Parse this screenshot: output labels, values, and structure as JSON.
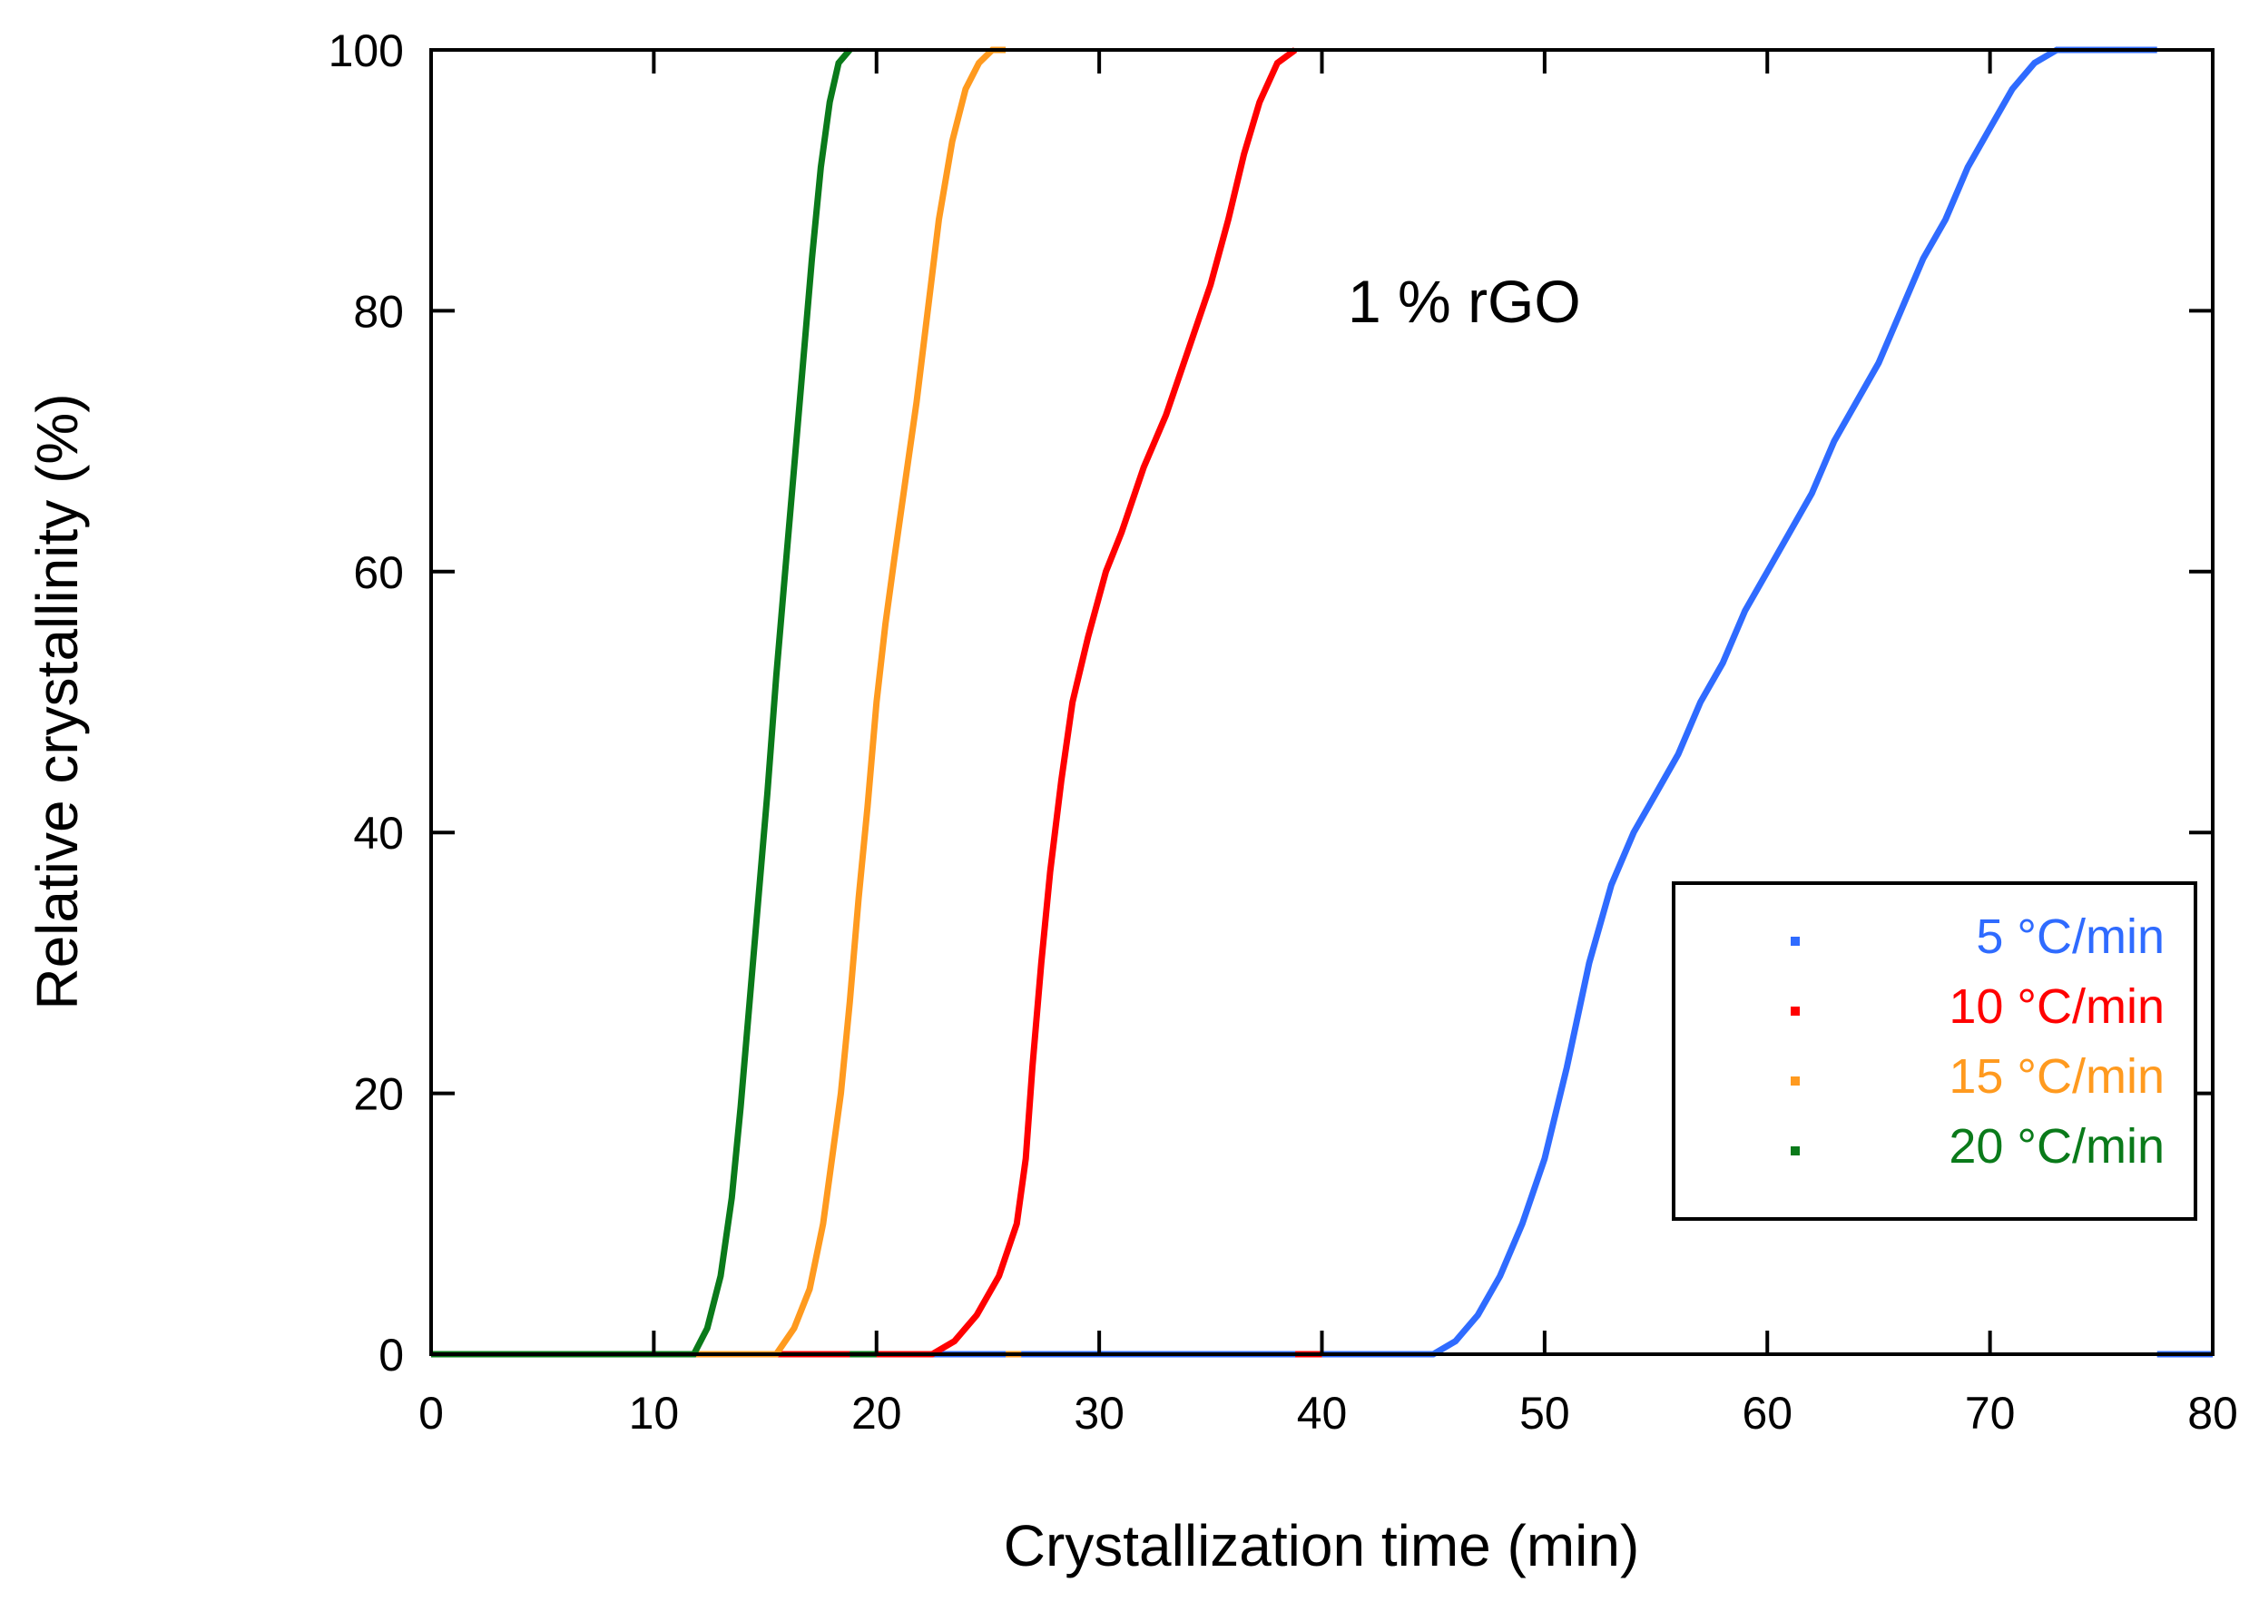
{
  "chart_data": {
    "type": "line",
    "title": "",
    "xlabel": "Crystallization time (min)",
    "ylabel": "Relative crystallinity (%)",
    "xlim": [
      0,
      80
    ],
    "ylim": [
      0,
      100
    ],
    "xticks": [
      0,
      10,
      20,
      30,
      40,
      50,
      60,
      70,
      80
    ],
    "yticks": [
      0,
      20,
      40,
      60,
      80,
      100
    ],
    "grid": false,
    "legend_position": "lower-right",
    "annotation": "1 % rGO",
    "series": [
      {
        "name": "5 °C/min",
        "color": "#2f6bff",
        "points": [
          [
            0,
            0
          ],
          [
            45,
            0
          ],
          [
            46,
            1
          ],
          [
            47,
            3
          ],
          [
            48,
            6
          ],
          [
            49,
            10
          ],
          [
            50,
            15
          ],
          [
            51,
            22
          ],
          [
            52,
            30
          ],
          [
            53,
            36
          ],
          [
            54,
            40
          ],
          [
            55,
            43
          ],
          [
            56,
            46
          ],
          [
            57,
            50
          ],
          [
            58,
            53
          ],
          [
            59,
            57
          ],
          [
            60,
            60
          ],
          [
            61,
            63
          ],
          [
            62,
            66
          ],
          [
            63,
            70
          ],
          [
            64,
            73
          ],
          [
            65,
            76
          ],
          [
            66,
            80
          ],
          [
            67,
            84
          ],
          [
            68,
            87
          ],
          [
            69,
            91
          ],
          [
            70,
            94
          ],
          [
            71,
            97
          ],
          [
            72,
            99
          ],
          [
            73,
            100
          ],
          [
            77.5,
            100
          ]
        ],
        "tail": [
          [
            77.5,
            0
          ],
          [
            80,
            0
          ]
        ]
      },
      {
        "name": "10 °C/min",
        "color": "#ff0000",
        "points": [
          [
            0,
            0
          ],
          [
            22.5,
            0
          ],
          [
            23.5,
            1
          ],
          [
            24.5,
            3
          ],
          [
            25.5,
            6
          ],
          [
            26.3,
            10
          ],
          [
            26.7,
            15
          ],
          [
            27.0,
            22
          ],
          [
            27.4,
            30
          ],
          [
            27.8,
            37
          ],
          [
            28.3,
            44
          ],
          [
            28.8,
            50
          ],
          [
            29.5,
            55
          ],
          [
            30.3,
            60
          ],
          [
            31,
            63
          ],
          [
            32,
            68
          ],
          [
            33,
            72
          ],
          [
            34,
            77
          ],
          [
            35,
            82
          ],
          [
            35.8,
            87
          ],
          [
            36.5,
            92
          ],
          [
            37.2,
            96
          ],
          [
            38,
            99
          ],
          [
            38.8,
            100
          ]
        ],
        "tail": [
          [
            38.8,
            0
          ],
          [
            40,
            0
          ]
        ]
      },
      {
        "name": "15 °C/min",
        "color": "#ff9a1f",
        "points": [
          [
            0,
            0
          ],
          [
            15.5,
            0
          ],
          [
            16.3,
            2
          ],
          [
            17,
            5
          ],
          [
            17.6,
            10
          ],
          [
            18.0,
            15
          ],
          [
            18.4,
            20
          ],
          [
            18.8,
            27
          ],
          [
            19.2,
            35
          ],
          [
            19.6,
            42
          ],
          [
            20.0,
            50
          ],
          [
            20.4,
            56
          ],
          [
            20.8,
            61
          ],
          [
            21.3,
            67
          ],
          [
            21.8,
            73
          ],
          [
            22.3,
            80
          ],
          [
            22.8,
            87
          ],
          [
            23.4,
            93
          ],
          [
            24,
            97
          ],
          [
            24.6,
            99
          ],
          [
            25.2,
            100
          ],
          [
            25.8,
            100
          ]
        ],
        "tail": [
          [
            25.8,
            0
          ],
          [
            26.5,
            0
          ]
        ]
      },
      {
        "name": "20 °C/min",
        "color": "#0a7a1a",
        "points": [
          [
            0,
            0
          ],
          [
            11.8,
            0
          ],
          [
            12.4,
            2
          ],
          [
            13.0,
            6
          ],
          [
            13.5,
            12
          ],
          [
            13.9,
            19
          ],
          [
            14.3,
            27
          ],
          [
            14.7,
            35
          ],
          [
            15.1,
            43
          ],
          [
            15.5,
            52
          ],
          [
            15.9,
            60
          ],
          [
            16.3,
            68
          ],
          [
            16.7,
            76
          ],
          [
            17.1,
            84
          ],
          [
            17.5,
            91
          ],
          [
            17.9,
            96
          ],
          [
            18.3,
            99
          ],
          [
            18.8,
            100
          ]
        ],
        "tail": [
          [
            18.8,
            0
          ],
          [
            20,
            0
          ]
        ]
      }
    ]
  }
}
